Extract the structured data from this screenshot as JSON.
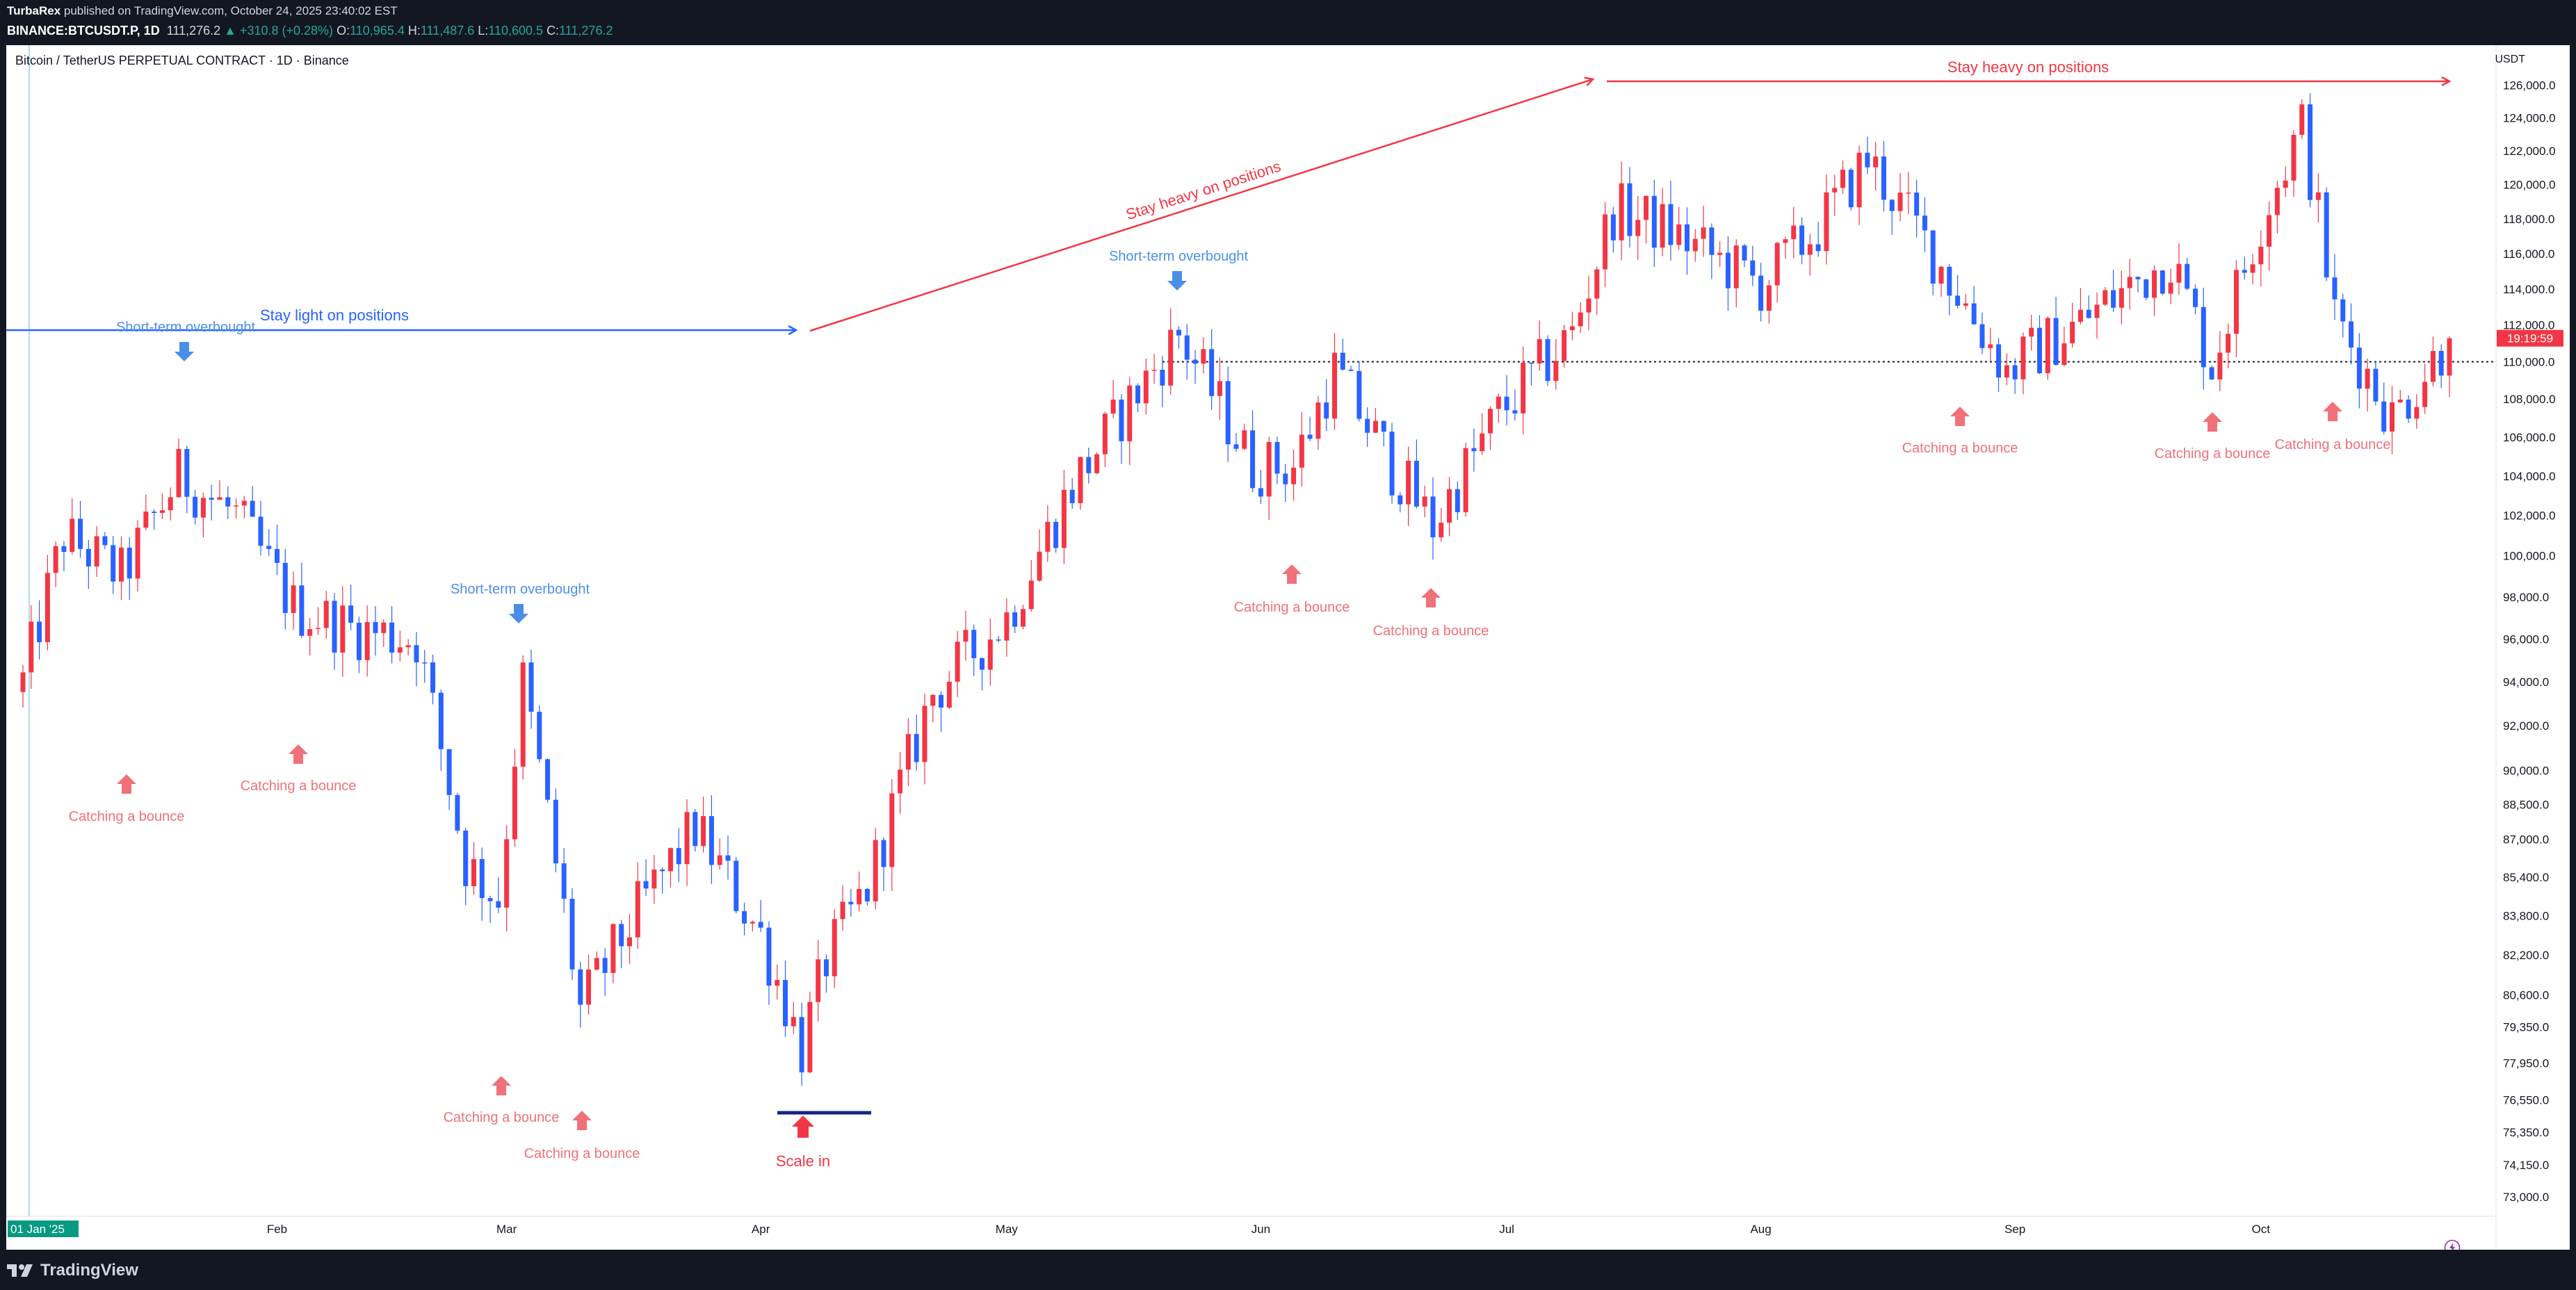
{
  "header": {
    "author": "TurbaRex",
    "published": "published on TradingView.com, October 24, 2025 23:40:02 EST",
    "symbol_code": "BINANCE:BTCUSDT.P, 1D",
    "last_price": "111,276.2",
    "change": "▲ +310.8 (+0.28%)",
    "o_label": "O:",
    "o_value": "110,965.4",
    "h_label": "H:",
    "h_value": "111,487.6",
    "l_label": "L:",
    "l_value": "110,600.5",
    "c_label": "C:",
    "c_value": "111,276.2"
  },
  "chart_title": "Bitcoin / TetherUS PERPETUAL CONTRACT · 1D · Binance",
  "currency_unit": "USDT",
  "footer": {
    "brand": "TradingView"
  },
  "colors": {
    "up": "#f23645",
    "down": "#2962ff",
    "blue_text": "#4a8fe7",
    "red_text": "#f0717a",
    "red_line": "#f23645",
    "blue_line": "#2962ff"
  },
  "icons": [
    "tradingview-logo-icon",
    "arrow-up-icon",
    "arrow-down-icon",
    "lightning-icon"
  ],
  "chart_data": {
    "type": "candlestick",
    "start_date": "2025-01-01",
    "end_date": "2025-10-24",
    "x_labels": [
      {
        "text": "01 Jan '25",
        "date": "2025-01-01",
        "highlight": true
      },
      {
        "text": "Feb",
        "date": "2025-02-01"
      },
      {
        "text": "Mar",
        "date": "2025-03-01"
      },
      {
        "text": "Apr",
        "date": "2025-04-01"
      },
      {
        "text": "May",
        "date": "2025-05-01"
      },
      {
        "text": "Jun",
        "date": "2025-06-01"
      },
      {
        "text": "Jul",
        "date": "2025-07-01"
      },
      {
        "text": "Aug",
        "date": "2025-08-01"
      },
      {
        "text": "Sep",
        "date": "2025-09-01"
      },
      {
        "text": "Oct",
        "date": "2025-10-01"
      }
    ],
    "y_ticks": [
      "126,000.0",
      "124,000.0",
      "122,000.0",
      "120,000.0",
      "118,000.0",
      "116,000.0",
      "114,000.0",
      "112,000.0",
      "110,000.0",
      "108,000.0",
      "106,000.0",
      "104,000.0",
      "102,000.0",
      "100,000.0",
      "98,000.0",
      "96,000.0",
      "94,000.0",
      "92,000.0",
      "90,000.0",
      "88,500.0",
      "87,000.0",
      "85,400.0",
      "83,800.0",
      "82,200.0",
      "80,600.0",
      "79,350.0",
      "77,950.0",
      "76,550.0",
      "75,350.0",
      "74,150.0",
      "73,000.0"
    ],
    "y_scale": "log",
    "y_range": [
      72300,
      128500
    ],
    "current_price_label": "111,276.2",
    "countdown_label": "19:19:59",
    "ohlc_anchor": {
      "dates": [
        "2025-01-01",
        "2025-01-06",
        "2025-01-13",
        "2025-01-20",
        "2025-01-27",
        "2025-02-03",
        "2025-02-10",
        "2025-02-18",
        "2025-02-24",
        "2025-02-28",
        "2025-03-03",
        "2025-03-10",
        "2025-03-17",
        "2025-03-24",
        "2025-04-01",
        "2025-04-06",
        "2025-04-09",
        "2025-04-14",
        "2025-04-22",
        "2025-05-01",
        "2025-05-09",
        "2025-05-22",
        "2025-05-31",
        "2025-06-05",
        "2025-06-10",
        "2025-06-17",
        "2025-06-22",
        "2025-06-30",
        "2025-07-09",
        "2025-07-14",
        "2025-07-20",
        "2025-08-01",
        "2025-08-08",
        "2025-08-14",
        "2025-08-22",
        "2025-08-31",
        "2025-09-10",
        "2025-09-20",
        "2025-09-25",
        "2025-10-01",
        "2025-10-06",
        "2025-10-10",
        "2025-10-17",
        "2025-10-24"
      ],
      "closes": [
        94000,
        101000,
        99000,
        104000,
        102000,
        97500,
        96500,
        96000,
        86000,
        84500,
        94000,
        80000,
        84000,
        87500,
        83000,
        78500,
        82000,
        85000,
        93500,
        97000,
        103500,
        111500,
        104500,
        104500,
        109500,
        104500,
        101500,
        107200,
        111500,
        118500,
        117500,
        114200,
        117500,
        121500,
        116000,
        109500,
        112500,
        115800,
        109800,
        118000,
        123500,
        112500,
        107000,
        111276
      ]
    },
    "horizontal_line": {
      "value": 110000,
      "style": "dotted",
      "from_date": "2025-05-20"
    },
    "annotations": [
      {
        "text": "Stay light on positions",
        "color": "blue",
        "kind": "arrow-line"
      },
      {
        "text": "Stay heavy on positions",
        "color": "red",
        "kind": "arrow-line"
      },
      {
        "text": "Stay heavy on positions",
        "color": "red",
        "kind": "arrow-line"
      },
      {
        "text": "Short-term overbought",
        "color": "blue",
        "kind": "down-arrow"
      },
      {
        "text": "Short-term overbought",
        "color": "blue",
        "kind": "down-arrow"
      },
      {
        "text": "Short-term overbought",
        "color": "blue",
        "kind": "down-arrow"
      },
      {
        "text": "Catching a bounce",
        "color": "red",
        "kind": "up-arrow"
      },
      {
        "text": "Catching a bounce",
        "color": "red",
        "kind": "up-arrow"
      },
      {
        "text": "Catching a bounce",
        "color": "red",
        "kind": "up-arrow"
      },
      {
        "text": "Catching a bounce",
        "color": "red",
        "kind": "up-arrow"
      },
      {
        "text": "Catching a bounce",
        "color": "red",
        "kind": "up-arrow"
      },
      {
        "text": "Catching a bounce",
        "color": "red",
        "kind": "up-arrow"
      },
      {
        "text": "Catching a bounce",
        "color": "red",
        "kind": "up-arrow"
      },
      {
        "text": "Catching a bounce",
        "color": "red",
        "kind": "up-arrow"
      },
      {
        "text": "Catching a bounce",
        "color": "red",
        "kind": "up-arrow"
      },
      {
        "text": "Scale in",
        "color": "red",
        "kind": "up-arrow-bold"
      }
    ]
  }
}
